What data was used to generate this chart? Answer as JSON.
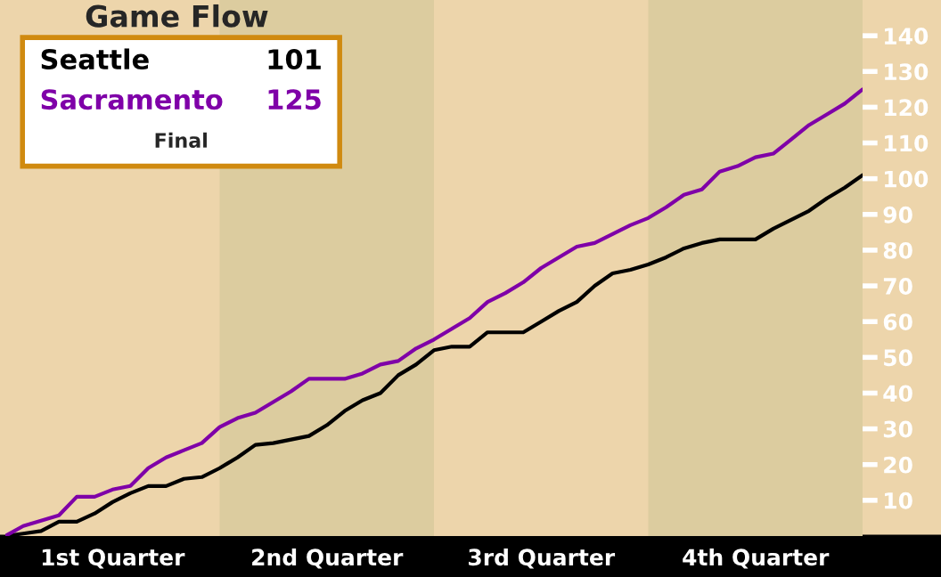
{
  "chart_data": {
    "type": "line",
    "title": "Game Flow",
    "categories": [
      null,
      null,
      null,
      null,
      null,
      null,
      "1st Quarter",
      null,
      null,
      null,
      null,
      null,
      null,
      null,
      null,
      null,
      null,
      null,
      "2nd Quarter",
      null,
      null,
      null,
      null,
      null,
      null,
      null,
      null,
      null,
      null,
      null,
      "3rd Quarter",
      null,
      null,
      null,
      null,
      null,
      null,
      null,
      null,
      null,
      null,
      null,
      "4th Quarter",
      null,
      null,
      null,
      null,
      null,
      null
    ],
    "ylim": [
      0,
      150
    ],
    "yticks": [
      10,
      20,
      30,
      40,
      50,
      60,
      70,
      80,
      90,
      100,
      110,
      120,
      130,
      140
    ],
    "grid": false,
    "legend": "top left",
    "marker": "none",
    "line_style": "solid",
    "series": [
      {
        "name": "Seattle",
        "color": "#000000",
        "values": [
          0,
          0.7,
          1.4,
          4,
          4,
          6.3,
          9.5,
          12,
          14,
          14,
          16,
          16.5,
          19,
          22,
          25.5,
          26,
          27,
          28,
          31,
          35,
          38,
          40,
          45,
          48,
          52,
          53,
          53,
          57,
          57,
          57,
          60,
          63,
          65.5,
          70,
          73.5,
          74.5,
          76,
          78,
          80.5,
          82,
          83,
          83,
          83,
          86,
          88.5,
          91,
          94.5,
          97.5,
          101
        ]
      },
      {
        "name": "Sacramento",
        "color": "#7f00a8",
        "values": [
          0,
          2.8,
          4.3,
          5.8,
          11,
          11,
          13,
          14,
          19,
          22,
          24,
          26,
          30.5,
          33,
          34.5,
          37.5,
          40.5,
          44,
          44,
          44,
          45.5,
          48,
          49,
          52.5,
          55,
          58,
          61,
          65.5,
          68,
          71,
          75,
          78,
          81,
          82,
          84.5,
          87,
          89,
          92,
          95.5,
          97,
          102,
          103.5,
          106,
          107,
          111,
          115,
          118,
          121,
          125
        ]
      }
    ],
    "annotations": [
      "101",
      "125",
      "Final"
    ]
  }
}
